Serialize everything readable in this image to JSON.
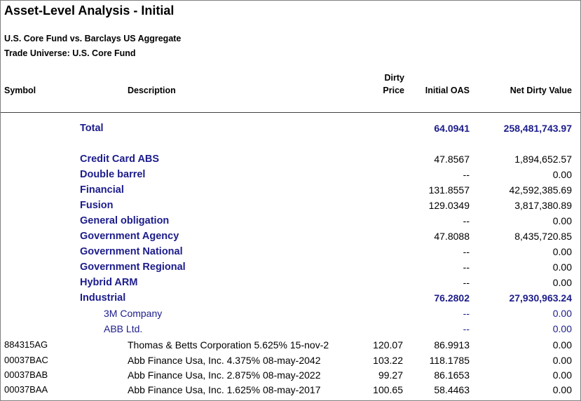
{
  "title": "Asset-Level Analysis - Initial",
  "subtitle1": "U.S. Core Fund vs. Barclays US Aggregate",
  "subtitle2": "Trade Universe: U.S. Core Fund",
  "columns": {
    "symbol": "Symbol",
    "description": "Description",
    "dirty_price_line1": "Dirty",
    "dirty_price_line2": "Price",
    "initial_oas": "Initial OAS",
    "net_dirty_value": "Net Dirty Value"
  },
  "total": {
    "label": "Total",
    "oas": "64.0941",
    "ndv": "258,481,743.97"
  },
  "groups": [
    {
      "label": "Credit Card ABS",
      "oas": "47.8567",
      "ndv": "1,894,652.57"
    },
    {
      "label": "Double barrel",
      "oas": "--",
      "ndv": "0.00"
    },
    {
      "label": "Financial",
      "oas": "131.8557",
      "ndv": "42,592,385.69"
    },
    {
      "label": "Fusion",
      "oas": "129.0349",
      "ndv": "3,817,380.89"
    },
    {
      "label": "General obligation",
      "oas": "--",
      "ndv": "0.00"
    },
    {
      "label": "Government Agency",
      "oas": "47.8088",
      "ndv": "8,435,720.85"
    },
    {
      "label": "Government National",
      "oas": "--",
      "ndv": "0.00"
    },
    {
      "label": "Government Regional",
      "oas": "--",
      "ndv": "0.00"
    },
    {
      "label": "Hybrid ARM",
      "oas": "--",
      "ndv": "0.00"
    }
  ],
  "industrial": {
    "label": "Industrial",
    "oas": "76.2802",
    "ndv": "27,930,963.24"
  },
  "issuers": [
    {
      "label": "3M Company",
      "oas": "--",
      "ndv": "0.00"
    },
    {
      "label": "ABB Ltd.",
      "oas": "--",
      "ndv": "0.00"
    }
  ],
  "securities": [
    {
      "symbol": "884315AG",
      "description": "Thomas & Betts Corporation 5.625% 15-nov-2",
      "dirty_price": "120.07",
      "oas": "86.9913",
      "ndv": "0.00"
    },
    {
      "symbol": "00037BAC",
      "description": "Abb Finance Usa, Inc. 4.375% 08-may-2042",
      "dirty_price": "103.22",
      "oas": "118.1785",
      "ndv": "0.00"
    },
    {
      "symbol": "00037BAB",
      "description": "Abb Finance Usa, Inc. 2.875% 08-may-2022",
      "dirty_price": "99.27",
      "oas": "86.1653",
      "ndv": "0.00"
    },
    {
      "symbol": "00037BAA",
      "description": "Abb Finance Usa, Inc. 1.625% 08-may-2017",
      "dirty_price": "100.65",
      "oas": "58.4463",
      "ndv": "0.00"
    }
  ]
}
